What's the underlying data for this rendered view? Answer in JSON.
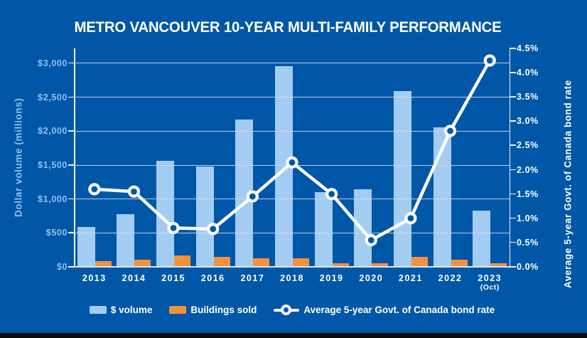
{
  "chart_data": {
    "type": "bar",
    "title": "METRO VANCOUVER 10-YEAR MULTI-FAMILY PERFORMANCE",
    "categories": [
      "2013",
      "2014",
      "2015",
      "2016",
      "2017",
      "2018",
      "2019",
      "2020",
      "2021",
      "2022",
      "2023"
    ],
    "category_sublabels": [
      "",
      "",
      "",
      "",
      "",
      "",
      "",
      "",
      "",
      "",
      "(Oct)"
    ],
    "series": [
      {
        "name": "$ volume",
        "type": "bar",
        "axis": "left",
        "color": "#A3CCF2",
        "values": [
          590,
          780,
          1560,
          1480,
          2170,
          2960,
          1100,
          1140,
          2590,
          2060,
          825
        ]
      },
      {
        "name": "Buildings sold",
        "type": "bar",
        "axis": "left",
        "color": "#F2923D",
        "values": [
          80,
          100,
          165,
          150,
          130,
          130,
          55,
          55,
          150,
          110,
          50
        ]
      },
      {
        "name": "Average 5-year Govt. of Canada bond rate",
        "type": "line",
        "axis": "right",
        "color": "#FFFFFF",
        "values": [
          1.6,
          1.55,
          0.8,
          0.78,
          1.45,
          2.15,
          1.5,
          0.55,
          1.0,
          2.8,
          4.25
        ]
      }
    ],
    "left_axis": {
      "label": "Dollar volume (millions)",
      "ticks": [
        "$0",
        "$500",
        "$1,000",
        "$1,500",
        "$2,000",
        "$2,500",
        "$3,000"
      ],
      "tick_values": [
        0,
        500,
        1000,
        1500,
        2000,
        2500,
        3000
      ],
      "top_value": 3220
    },
    "right_axis": {
      "label": "Average 5-year Govt. of Canada bond rate",
      "ticks": [
        "0.0%",
        "0.5%",
        "1.0%",
        "1.5%",
        "2.0%",
        "2.5%",
        "3.0%",
        "3.5%",
        "4.0%",
        "4.5%"
      ],
      "tick_values": [
        0,
        0.5,
        1.0,
        1.5,
        2.0,
        2.5,
        3.0,
        3.5,
        4.0,
        4.5
      ],
      "max": 4.5
    },
    "legend_position": "bottom",
    "grid": true,
    "colors": {
      "background": "#0057A7",
      "volume_bar": "#A3CCF2",
      "sold_bar": "#F2923D",
      "line": "#FFFFFF",
      "left_text": "#8FC0EC",
      "gridline": "#CED7E0",
      "bottom_strip": "#0A0A0A"
    }
  }
}
